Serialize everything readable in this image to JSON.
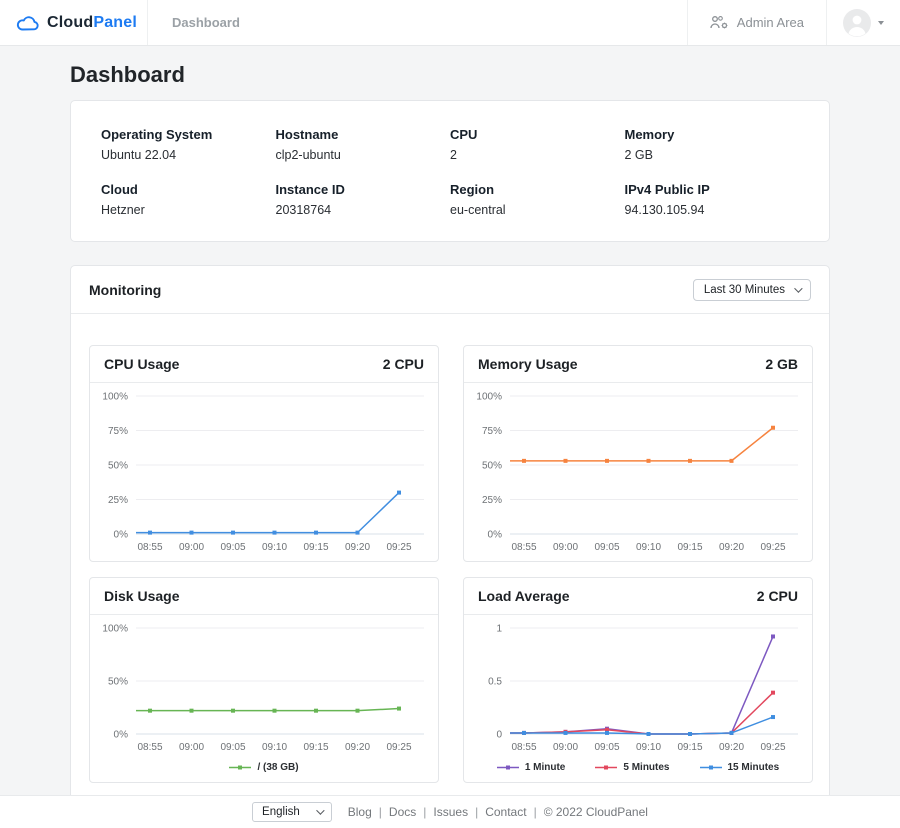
{
  "header": {
    "brand": {
      "part1": "Cloud",
      "part2": "Panel"
    },
    "nav_dashboard": "Dashboard",
    "admin_area": "Admin Area"
  },
  "page": {
    "title": "Dashboard"
  },
  "system_info": {
    "fields": [
      {
        "label": "Operating System",
        "value": "Ubuntu 22.04"
      },
      {
        "label": "Hostname",
        "value": "clp2-ubuntu"
      },
      {
        "label": "CPU",
        "value": "2"
      },
      {
        "label": "Memory",
        "value": "2 GB"
      },
      {
        "label": "Cloud",
        "value": "Hetzner"
      },
      {
        "label": "Instance ID",
        "value": "20318764"
      },
      {
        "label": "Region",
        "value": "eu-central"
      },
      {
        "label": "IPv4 Public IP",
        "value": "94.130.105.94"
      }
    ]
  },
  "monitoring": {
    "title": "Monitoring",
    "range_selector": "Last 30 Minutes"
  },
  "chart_data": [
    {
      "type": "line",
      "title": "CPU Usage",
      "right_label": "2 CPU",
      "categories": [
        "08:55",
        "09:00",
        "09:05",
        "09:10",
        "09:15",
        "09:20",
        "09:25"
      ],
      "ylim": [
        0,
        100
      ],
      "yticks": [
        0,
        25,
        50,
        75,
        100
      ],
      "ytick_labels": [
        "0%",
        "25%",
        "50%",
        "75%",
        "100%"
      ],
      "grid": true,
      "legend": false,
      "series": [
        {
          "name": "CPU Usage",
          "color": "#418ee0",
          "values": [
            1,
            1,
            1,
            1,
            1,
            1,
            30
          ]
        }
      ]
    },
    {
      "type": "line",
      "title": "Memory Usage",
      "right_label": "2 GB",
      "categories": [
        "08:55",
        "09:00",
        "09:05",
        "09:10",
        "09:15",
        "09:20",
        "09:25"
      ],
      "ylim": [
        0,
        100
      ],
      "yticks": [
        0,
        25,
        50,
        75,
        100
      ],
      "ytick_labels": [
        "0%",
        "25%",
        "50%",
        "75%",
        "100%"
      ],
      "grid": true,
      "legend": false,
      "series": [
        {
          "name": "Memory Usage",
          "color": "#f6833f",
          "values": [
            53,
            53,
            53,
            53,
            53,
            53,
            77
          ]
        }
      ]
    },
    {
      "type": "line",
      "title": "Disk Usage",
      "right_label": "",
      "categories": [
        "08:55",
        "09:00",
        "09:05",
        "09:10",
        "09:15",
        "09:20",
        "09:25"
      ],
      "ylim": [
        0,
        100
      ],
      "yticks": [
        0,
        50,
        100
      ],
      "ytick_labels": [
        "0%",
        "50%",
        "100%"
      ],
      "grid": true,
      "legend": true,
      "series": [
        {
          "name": "/ (38 GB)",
          "color": "#67b554",
          "values": [
            22,
            22,
            22,
            22,
            22,
            22,
            24
          ]
        }
      ]
    },
    {
      "type": "line",
      "title": "Load Average",
      "right_label": "2 CPU",
      "categories": [
        "08:55",
        "09:00",
        "09:05",
        "09:10",
        "09:15",
        "09:20",
        "09:25"
      ],
      "ylim": [
        0,
        1
      ],
      "yticks": [
        0,
        0.5,
        1
      ],
      "ytick_labels": [
        "0",
        "0.5",
        "1"
      ],
      "grid": true,
      "legend": true,
      "series": [
        {
          "name": "1 Minute",
          "color": "#7d59c1",
          "values": [
            0.01,
            0.02,
            0.05,
            0.0,
            0.0,
            0.01,
            0.92
          ]
        },
        {
          "name": "5 Minutes",
          "color": "#e2485e",
          "values": [
            0.01,
            0.02,
            0.04,
            0.0,
            0.0,
            0.01,
            0.39
          ]
        },
        {
          "name": "15 Minutes",
          "color": "#3f8ee0",
          "values": [
            0.01,
            0.01,
            0.01,
            0.0,
            0.0,
            0.01,
            0.16
          ]
        }
      ]
    }
  ],
  "footer": {
    "language": "English",
    "links": [
      "Blog",
      "Docs",
      "Issues",
      "Contact"
    ],
    "copyright": "© 2022  CloudPanel"
  },
  "colors": {
    "accent_blue": "#1d7bf2",
    "page_bg": "#f4f5f6",
    "border": "#e4e6e9",
    "muted_text": "#6e7276"
  }
}
